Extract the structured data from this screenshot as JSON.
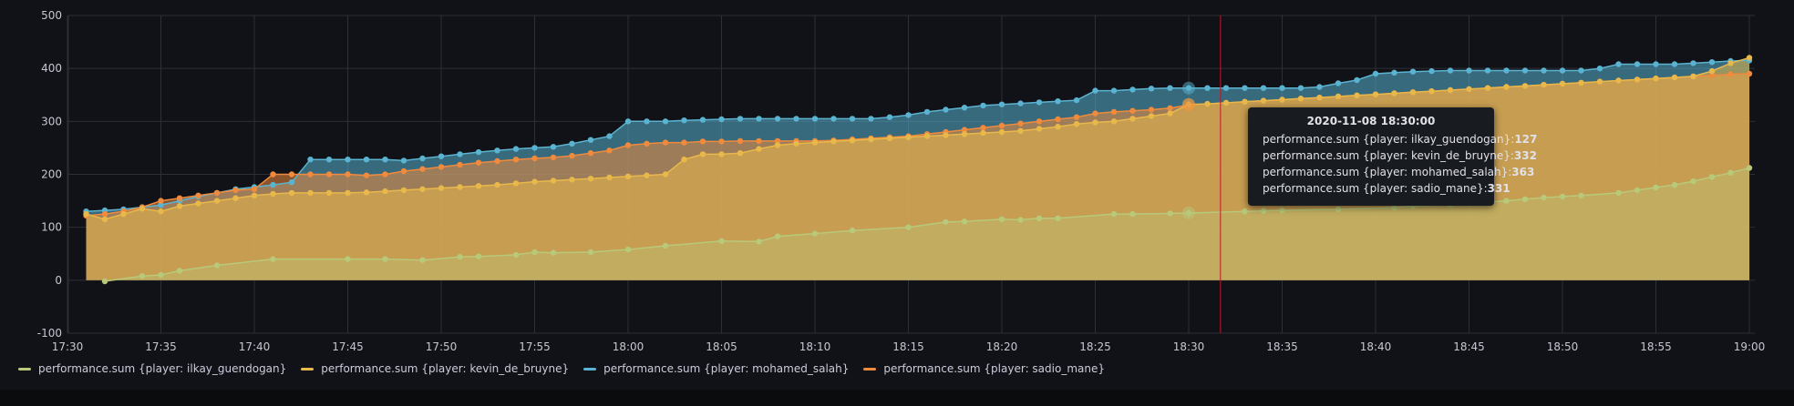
{
  "chart_data": {
    "type": "area",
    "title": "",
    "xlabel": "",
    "ylabel": "",
    "ylim": [
      -100,
      500
    ],
    "yticks": [
      "500",
      "400",
      "300",
      "200",
      "100",
      "0",
      "-100"
    ],
    "ytick_values": [
      500,
      400,
      300,
      200,
      100,
      0,
      -100
    ],
    "xticks": [
      "17:30",
      "17:35",
      "17:40",
      "17:45",
      "17:50",
      "17:55",
      "18:00",
      "18:05",
      "18:10",
      "18:15",
      "18:20",
      "18:25",
      "18:30",
      "18:35",
      "18:40",
      "18:45",
      "18:50",
      "18:55",
      "19:00"
    ],
    "xtick_minutes": [
      0,
      5,
      10,
      15,
      20,
      25,
      30,
      35,
      40,
      45,
      50,
      55,
      60,
      65,
      70,
      75,
      80,
      85,
      90
    ],
    "x_unit": "minutes after 17:30",
    "grid": true,
    "legend_position": "bottom-left",
    "stacked": false,
    "series": [
      {
        "name": "performance.sum {player: ilkay_guendogan}",
        "color": "#b8c97a",
        "x": [
          2,
          4,
          5,
          6,
          8,
          11,
          15,
          17,
          19,
          21,
          22,
          24,
          25,
          26,
          28,
          30,
          32,
          35,
          37,
          38,
          40,
          42,
          45,
          47,
          48,
          50,
          51,
          52,
          53,
          56,
          57,
          59,
          60,
          63,
          64,
          65,
          68,
          71,
          72,
          74,
          75,
          77,
          78,
          79,
          80,
          81,
          83,
          84,
          85,
          86,
          87,
          88,
          89,
          90
        ],
        "values": [
          -2,
          8,
          10,
          18,
          28,
          40,
          40,
          40,
          38,
          44,
          45,
          48,
          53,
          52,
          53,
          58,
          65,
          74,
          73,
          83,
          88,
          94,
          100,
          110,
          111,
          115,
          114,
          117,
          117,
          125,
          125,
          126,
          127,
          130,
          131,
          132,
          134,
          137,
          140,
          143,
          145,
          150,
          153,
          156,
          158,
          160,
          165,
          170,
          175,
          180,
          187,
          195,
          203,
          212
        ]
      },
      {
        "name": "performance.sum {player: kevin_de_bruyne}",
        "color": "#e8b84b",
        "x": [
          1,
          2,
          3,
          4,
          5,
          6,
          7,
          8,
          9,
          10,
          11,
          12,
          13,
          14,
          15,
          16,
          17,
          18,
          19,
          20,
          21,
          22,
          23,
          24,
          25,
          26,
          27,
          28,
          29,
          30,
          31,
          32,
          33,
          34,
          35,
          36,
          37,
          38,
          39,
          40,
          41,
          42,
          43,
          44,
          45,
          46,
          47,
          48,
          49,
          50,
          51,
          52,
          53,
          54,
          55,
          56,
          57,
          58,
          59,
          60,
          61,
          62,
          63,
          64,
          65,
          66,
          67,
          68,
          69,
          70,
          71,
          72,
          73,
          74,
          75,
          76,
          77,
          78,
          79,
          80,
          81,
          82,
          83,
          84,
          85,
          86,
          87,
          88,
          89,
          90
        ],
        "values": [
          125,
          115,
          125,
          135,
          130,
          140,
          145,
          150,
          155,
          160,
          163,
          165,
          165,
          165,
          165,
          166,
          168,
          170,
          172,
          174,
          176,
          178,
          180,
          183,
          186,
          188,
          190,
          192,
          194,
          196,
          198,
          200,
          228,
          238,
          238,
          240,
          248,
          255,
          258,
          260,
          262,
          264,
          266,
          268,
          270,
          272,
          274,
          276,
          278,
          280,
          282,
          286,
          290,
          295,
          298,
          300,
          305,
          310,
          315,
          332,
          333,
          335,
          337,
          339,
          341,
          343,
          345,
          347,
          349,
          351,
          353,
          355,
          357,
          359,
          361,
          363,
          365,
          367,
          369,
          371,
          373,
          375,
          377,
          379,
          381,
          383,
          385,
          395,
          410,
          420
        ]
      },
      {
        "name": "performance.sum {player: mohamed_salah}",
        "color": "#5ab3d1",
        "x": [
          1,
          2,
          3,
          4,
          5,
          6,
          7,
          8,
          9,
          10,
          11,
          12,
          13,
          14,
          15,
          16,
          17,
          18,
          19,
          20,
          21,
          22,
          23,
          24,
          25,
          26,
          27,
          28,
          29,
          30,
          31,
          32,
          33,
          34,
          35,
          36,
          37,
          38,
          39,
          40,
          41,
          42,
          43,
          44,
          45,
          46,
          47,
          48,
          49,
          50,
          51,
          52,
          53,
          54,
          55,
          56,
          57,
          58,
          59,
          60,
          61,
          62,
          63,
          64,
          65,
          66,
          67,
          68,
          69,
          70,
          71,
          72,
          73,
          74,
          75,
          76,
          77,
          78,
          79,
          80,
          81,
          82,
          83,
          84,
          85,
          86,
          87,
          88,
          89,
          90
        ],
        "values": [
          130,
          132,
          134,
          138,
          142,
          150,
          158,
          165,
          172,
          176,
          180,
          185,
          228,
          228,
          228,
          228,
          228,
          226,
          230,
          234,
          238,
          242,
          245,
          248,
          250,
          252,
          258,
          265,
          272,
          300,
          300,
          300,
          302,
          303,
          304,
          305,
          305,
          305,
          305,
          305,
          305,
          305,
          305,
          308,
          312,
          318,
          322,
          326,
          330,
          332,
          334,
          336,
          338,
          340,
          358,
          358,
          360,
          362,
          363,
          363,
          363,
          363,
          363,
          363,
          363,
          363,
          365,
          372,
          378,
          390,
          392,
          394,
          395,
          396,
          396,
          396,
          396,
          396,
          396,
          396,
          396,
          400,
          408,
          408,
          408,
          408,
          410,
          412,
          414,
          415
        ]
      },
      {
        "name": "performance.sum {player: sadio_mane}",
        "color": "#f08a3c",
        "x": [
          1,
          2,
          3,
          4,
          5,
          6,
          7,
          8,
          9,
          10,
          11,
          12,
          13,
          14,
          15,
          16,
          17,
          18,
          19,
          20,
          21,
          22,
          23,
          24,
          25,
          26,
          27,
          28,
          29,
          30,
          31,
          32,
          33,
          34,
          35,
          36,
          37,
          38,
          39,
          40,
          41,
          42,
          43,
          44,
          45,
          46,
          47,
          48,
          49,
          50,
          51,
          52,
          53,
          54,
          55,
          56,
          57,
          58,
          59,
          60,
          61,
          62,
          63,
          64,
          65,
          66,
          67,
          68,
          69,
          70,
          71,
          72,
          73,
          74,
          75,
          76,
          77,
          78,
          79,
          80,
          81,
          82,
          83,
          84,
          85,
          86,
          87,
          88,
          89,
          90
        ],
        "values": [
          122,
          125,
          130,
          138,
          150,
          155,
          160,
          165,
          170,
          172,
          200,
          200,
          200,
          200,
          200,
          198,
          200,
          206,
          210,
          214,
          218,
          222,
          225,
          228,
          230,
          232,
          235,
          240,
          245,
          255,
          258,
          260,
          260,
          262,
          262,
          263,
          263,
          263,
          263,
          263,
          264,
          266,
          268,
          270,
          272,
          276,
          280,
          284,
          288,
          292,
          296,
          300,
          304,
          308,
          315,
          318,
          320,
          322,
          325,
          331,
          333,
          335,
          337,
          339,
          341,
          343,
          345,
          347,
          349,
          351,
          353,
          355,
          357,
          359,
          361,
          363,
          365,
          367,
          369,
          371,
          373,
          375,
          377,
          379,
          381,
          383,
          385,
          387,
          389,
          390
        ]
      }
    ],
    "crosshair_x": 61.7,
    "tooltip": {
      "title": "2020-11-08 18:30:00",
      "rows": [
        {
          "label": "performance.sum {player: ilkay_guendogan}:",
          "value": "127",
          "color": "#b8c97a"
        },
        {
          "label": "performance.sum {player: kevin_de_bruyne}:",
          "value": "332",
          "color": "#e8b84b"
        },
        {
          "label": "performance.sum {player: mohamed_salah}:",
          "value": "363",
          "color": "#5ab3d1"
        },
        {
          "label": "performance.sum {player: sadio_mane}:",
          "value": "331",
          "color": "#f08a3c"
        }
      ]
    }
  },
  "legend": {
    "items": [
      {
        "label": "performance.sum {player: ilkay_guendogan}",
        "color": "#b8c97a"
      },
      {
        "label": "performance.sum {player: kevin_de_bruyne}",
        "color": "#e8b84b"
      },
      {
        "label": "performance.sum {player: mohamed_salah}",
        "color": "#5ab3d1"
      },
      {
        "label": "performance.sum {player: sadio_mane}",
        "color": "#f08a3c"
      }
    ]
  }
}
